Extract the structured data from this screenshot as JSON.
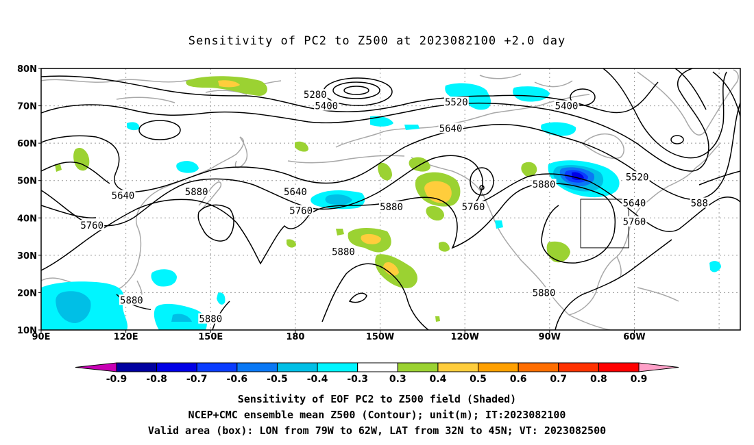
{
  "title": "Sensitivity of PC2 to Z500 at 2023082100 +2.0 day",
  "lat_labels": [
    "80N",
    "70N",
    "60N",
    "50N",
    "40N",
    "30N",
    "20N",
    "10N"
  ],
  "lon_labels": [
    "90E",
    "120E",
    "150E",
    "180",
    "150W",
    "120W",
    "90W",
    "60W"
  ],
  "contour_labels": [
    {
      "text": "5280",
      "lon": 187,
      "lat": 73
    },
    {
      "text": "5400",
      "lon": 191,
      "lat": 70
    },
    {
      "text": "5520",
      "lon": 237,
      "lat": 71
    },
    {
      "text": "5400",
      "lon": 276,
      "lat": 70
    },
    {
      "text": "5640",
      "lon": 235,
      "lat": 64
    },
    {
      "text": "5640",
      "lon": 119,
      "lat": 46
    },
    {
      "text": "5880",
      "lon": 145,
      "lat": 47
    },
    {
      "text": "5640",
      "lon": 180,
      "lat": 47
    },
    {
      "text": "5760",
      "lon": 182,
      "lat": 42
    },
    {
      "text": "5880",
      "lon": 214,
      "lat": 43
    },
    {
      "text": "5760",
      "lon": 243,
      "lat": 43
    },
    {
      "text": "5880",
      "lon": 268,
      "lat": 49
    },
    {
      "text": "5520",
      "lon": 301,
      "lat": 51
    },
    {
      "text": "5640",
      "lon": 300,
      "lat": 44
    },
    {
      "text": "5760",
      "lon": 300,
      "lat": 39
    },
    {
      "text": "588",
      "lon": 323,
      "lat": 44
    },
    {
      "text": "5760",
      "lon": 108,
      "lat": 38
    },
    {
      "text": "5880",
      "lon": 197,
      "lat": 31
    },
    {
      "text": "5880",
      "lon": 122,
      "lat": 18
    },
    {
      "text": "5880",
      "lon": 150,
      "lat": 13
    },
    {
      "text": "5880",
      "lon": 268,
      "lat": 20
    }
  ],
  "colorbar": {
    "labels": [
      "-0.9",
      "-0.8",
      "-0.7",
      "-0.6",
      "-0.5",
      "-0.4",
      "-0.3",
      "0.3",
      "0.4",
      "0.5",
      "0.6",
      "0.7",
      "0.8",
      "0.9"
    ],
    "colors": [
      "#0000a0",
      "#0000e6",
      "#0a3cff",
      "#0a78f5",
      "#00bfe6",
      "#00f5ff",
      "#ffffff",
      "#9bd232",
      "#ffcd3c",
      "#ffa000",
      "#ff6e00",
      "#ff3200",
      "#ff0000"
    ],
    "low_extend_color": "#c800b4",
    "high_extend_color": "#ffa0c8"
  },
  "valid_box": {
    "lon_min": -79,
    "lon_max": -62,
    "lat_min": 32,
    "lat_max": 45
  },
  "footer": {
    "line1": "Sensitivity of EOF PC2 to Z500 field (Shaded)",
    "line2": "NCEP+CMC ensemble mean Z500 (Contour); unit(m); IT:2023082100",
    "line3": "Valid area (box): LON from 79W to 62W, LAT from 32N to 45N; VT: 2023082500"
  }
}
